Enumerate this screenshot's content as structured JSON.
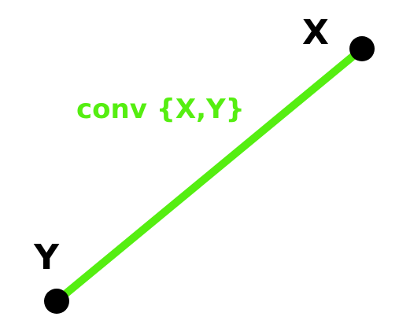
{
  "points": {
    "x": {
      "label": "X"
    },
    "y": {
      "label": "Y"
    }
  },
  "segment": {
    "label": "conv {X,Y}"
  },
  "colors": {
    "segment": "#55ee11",
    "label": "#55ee11",
    "point": "#000000",
    "background": "#ffffff"
  }
}
